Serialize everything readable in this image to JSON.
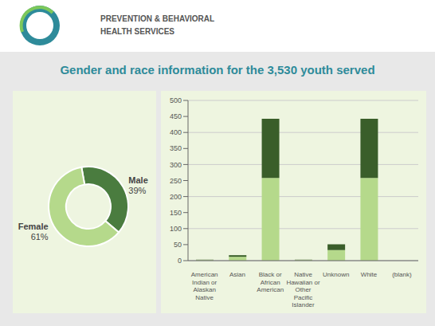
{
  "chart_data": [
    {
      "type": "pie",
      "title": "Gender and race information for the 3,530 youth served",
      "annotations": [
        "PREVENTION & BEHAVIORAL",
        "HEALTH SERVICES"
      ],
      "categories": [
        "Male",
        "Female"
      ],
      "values": [
        39,
        61
      ],
      "value_labels": [
        "39%",
        "61%"
      ],
      "colors": [
        "#4a7c3f",
        "#b5d98b"
      ]
    },
    {
      "type": "bar",
      "stacked": true,
      "grid": true,
      "categories": [
        "American\nIndian or\nAlaskan\nNative",
        "Asian",
        "Black or\nAfrican\nAmerican",
        "Native\nHawaiian or\nOther\nPacific\nIslander",
        "Unknown",
        "White",
        "(blank)"
      ],
      "series": [
        {
          "color": "#b5d98b",
          "values": [
            2,
            12,
            258,
            2,
            33,
            258,
            0
          ]
        },
        {
          "color": "#3a5e2a",
          "values": [
            1,
            5,
            185,
            1,
            18,
            185,
            0
          ]
        }
      ],
      "ylim": [
        0,
        500
      ],
      "yticks": [
        0,
        50,
        100,
        150,
        200,
        250,
        300,
        350,
        400,
        450,
        500
      ]
    }
  ]
}
